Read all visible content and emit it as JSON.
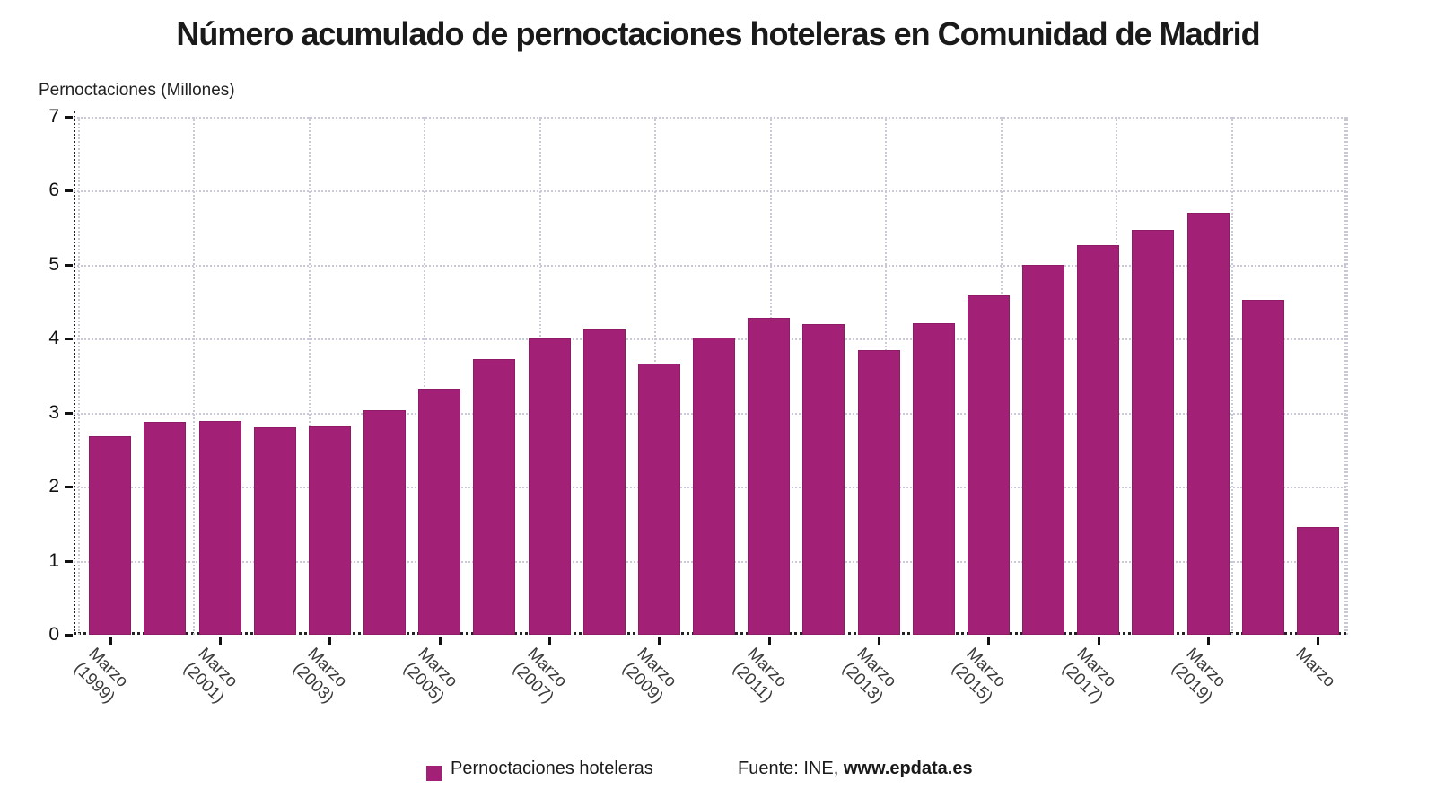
{
  "header": {
    "title": "Número acumulado de pernoctaciones hoteleras en Comunidad de Madrid"
  },
  "y_axis": {
    "title": "Pernoctaciones (Millones)",
    "tick_labels": [
      "0",
      "1",
      "2",
      "3",
      "4",
      "5",
      "6",
      "7"
    ]
  },
  "x_axis": {
    "tick_labels": [
      {
        "top": "Marzo",
        "bottom": "(1999)"
      },
      {
        "top": "Marzo",
        "bottom": "(2001)"
      },
      {
        "top": "Marzo",
        "bottom": "(2003)"
      },
      {
        "top": "Marzo",
        "bottom": "(2005)"
      },
      {
        "top": "Marzo",
        "bottom": "(2007)"
      },
      {
        "top": "Marzo",
        "bottom": "(2009)"
      },
      {
        "top": "Marzo",
        "bottom": "(2011)"
      },
      {
        "top": "Marzo",
        "bottom": "(2013)"
      },
      {
        "top": "Marzo",
        "bottom": "(2015)"
      },
      {
        "top": "Marzo",
        "bottom": "(2017)"
      },
      {
        "top": "Marzo",
        "bottom": "(2019)"
      },
      {
        "top": "Marzo",
        "bottom": ""
      }
    ]
  },
  "legend": {
    "series_label": "Pernoctaciones hoteleras"
  },
  "footer": {
    "source_regular": "Fuente: INE, ",
    "source_bold": "www.epdata.es"
  },
  "colors": {
    "bar_fill": "#a32077",
    "bar_edge": "#8f1b66",
    "grid": "#c9c9d8",
    "axis": "#222222"
  },
  "chart_data": {
    "type": "bar",
    "title": "Número acumulado de pernoctaciones hoteleras en Comunidad de Madrid",
    "series_name": "Pernoctaciones hoteleras",
    "categories": [
      "Marzo (1999)",
      "Marzo (2000)",
      "Marzo (2001)",
      "Marzo (2002)",
      "Marzo (2003)",
      "Marzo (2004)",
      "Marzo (2005)",
      "Marzo (2006)",
      "Marzo (2007)",
      "Marzo (2008)",
      "Marzo (2009)",
      "Marzo (2010)",
      "Marzo (2011)",
      "Marzo (2012)",
      "Marzo (2013)",
      "Marzo (2014)",
      "Marzo (2015)",
      "Marzo (2016)",
      "Marzo (2017)",
      "Marzo (2018)",
      "Marzo (2019)",
      "Marzo (2020)",
      "Marzo (2021)"
    ],
    "values": [
      2.68,
      2.87,
      2.89,
      2.8,
      2.81,
      3.03,
      3.33,
      3.72,
      4.0,
      4.13,
      3.66,
      4.01,
      4.28,
      4.2,
      3.84,
      4.21,
      4.59,
      5.0,
      5.27,
      5.47,
      5.7,
      4.52,
      1.46
    ],
    "xlabel": "",
    "ylabel": "Pernoctaciones (Millones)",
    "ylim": [
      0,
      7
    ],
    "y_tick_step": 1,
    "x_tick_labels_shown": [
      "Marzo (1999)",
      "Marzo (2001)",
      "Marzo (2003)",
      "Marzo (2005)",
      "Marzo (2007)",
      "Marzo (2009)",
      "Marzo (2011)",
      "Marzo (2013)",
      "Marzo (2015)",
      "Marzo (2017)",
      "Marzo (2019)",
      "Marzo"
    ],
    "grid": true,
    "legend_position": "bottom",
    "source_note": "Fuente: INE, www.epdata.es"
  }
}
